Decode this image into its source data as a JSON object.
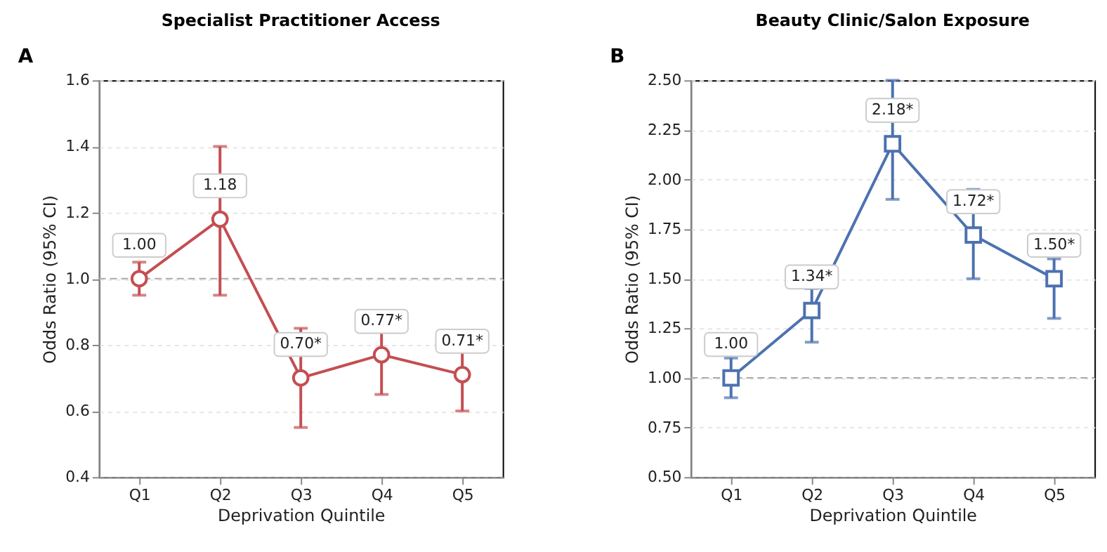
{
  "chart_data": [
    {
      "type": "line",
      "title": "Specialist Practitioner Access",
      "xlabel": "Deprivation Quintile",
      "ylabel": "Odds Ratio (95% CI)",
      "categories": [
        "Q1",
        "Q2",
        "Q3",
        "Q4",
        "Q5"
      ],
      "series": [
        {
          "color": "#c44e52",
          "values": [
            1.0,
            1.18,
            0.7,
            0.77,
            0.71
          ],
          "errors": [
            [
              0.95,
              1.05
            ],
            [
              0.95,
              1.4
            ],
            [
              0.55,
              0.85
            ],
            [
              0.65,
              0.84
            ],
            [
              0.6,
              0.78
            ]
          ],
          "value_labels": [
            "1.00",
            "1.18",
            "0.70*",
            "0.77*",
            "0.71*"
          ]
        }
      ],
      "marker": "circle",
      "ylim": [
        0.4,
        1.6
      ],
      "yticks": [
        0.4,
        0.6,
        0.8,
        {
          "value": 1.0,
          "label": "1.0"
        },
        1.2,
        1.4,
        1.6
      ],
      "grid": "y",
      "ref_lines": [
        {
          "axis": "y",
          "value": 1.0,
          "color": "#aaaaaa",
          "line_style": "dashed"
        }
      ],
      "annotations": [
        "A"
      ]
    },
    {
      "type": "line",
      "title": "Beauty Clinic/Salon Exposure",
      "xlabel": "Deprivation Quintile",
      "ylabel": "Odds Ratio (95% CI)",
      "categories": [
        "Q1",
        "Q2",
        "Q3",
        "Q4",
        "Q5"
      ],
      "series": [
        {
          "color": "#4c72b0",
          "values": [
            1.0,
            1.34,
            2.18,
            1.72,
            1.5
          ],
          "errors": [
            [
              0.9,
              1.1
            ],
            [
              1.18,
              1.45
            ],
            [
              1.9,
              2.5
            ],
            [
              1.5,
              1.95
            ],
            [
              1.3,
              1.6
            ]
          ],
          "value_labels": [
            "1.00",
            "1.34*",
            "2.18*",
            "1.72*",
            "1.50*"
          ]
        }
      ],
      "marker": "square",
      "ylim": [
        0.5,
        2.5
      ],
      "yticks": [
        {
          "value": 0.5,
          "label": "0.50"
        },
        {
          "value": 0.75,
          "label": "0.75"
        },
        {
          "value": 1.0,
          "label": "1.00"
        },
        {
          "value": 1.25,
          "label": "1.25"
        },
        {
          "value": 1.5,
          "label": "1.50"
        },
        {
          "value": 1.75,
          "label": "1.75"
        },
        {
          "value": 2.0,
          "label": "2.00"
        },
        {
          "value": 2.25,
          "label": "2.25"
        },
        {
          "value": 2.5,
          "label": "2.50"
        }
      ],
      "grid": "y",
      "ref_lines": [
        {
          "axis": "y",
          "value": 1.0,
          "color": "#aaaaaa",
          "line_style": "dashed"
        }
      ],
      "annotations": [
        "B"
      ]
    }
  ]
}
